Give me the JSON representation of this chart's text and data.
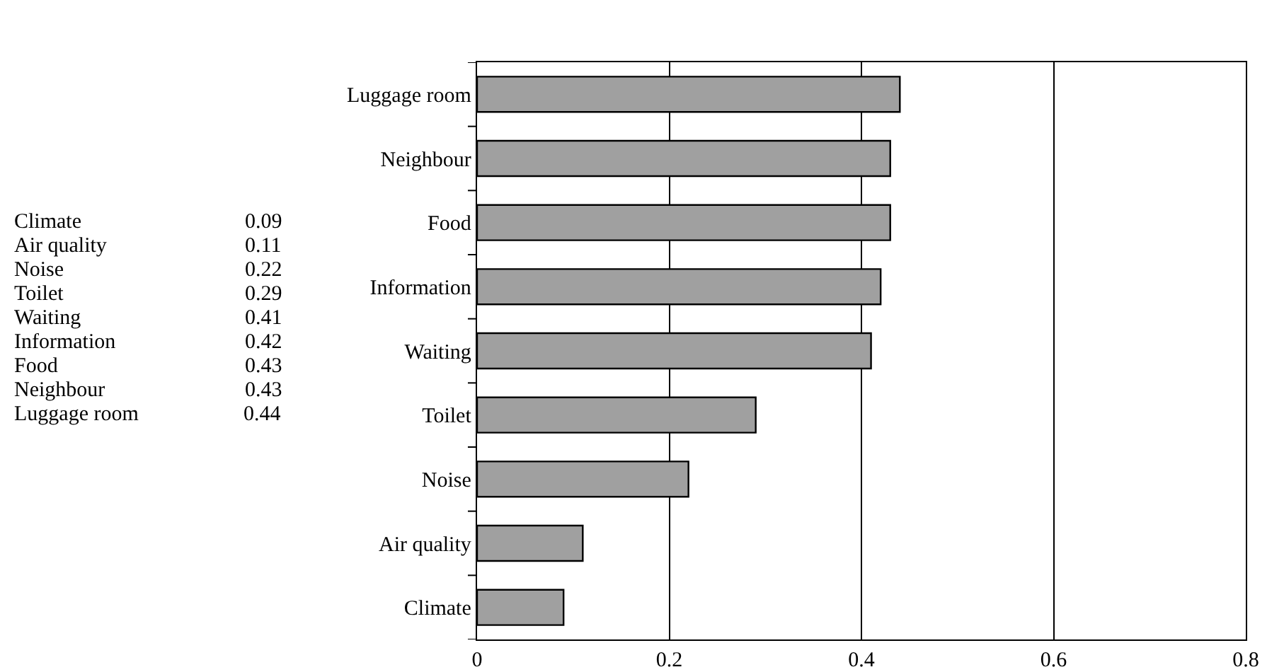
{
  "chart_data": {
    "type": "bar",
    "orientation": "horizontal",
    "categories": [
      "Luggage room",
      "Neighbour",
      "Food",
      "Information",
      "Waiting",
      "Toilet",
      "Noise",
      "Air quality",
      "Climate"
    ],
    "values": [
      0.44,
      0.43,
      0.43,
      0.42,
      0.41,
      0.29,
      0.22,
      0.11,
      0.09
    ],
    "color": "#a0a0a0",
    "xlim": [
      0,
      0.8
    ],
    "xticks": [
      0,
      0.2,
      0.4,
      0.6,
      0.8
    ],
    "grid": "x",
    "annotations": [
      "Climate",
      "0.09",
      "Air quality",
      "0.11",
      "Noise",
      "0.22",
      "Toilet",
      "0.29",
      "Waiting",
      "0.41",
      "Information",
      "0.42",
      "Food",
      "0.43",
      "Neighbour",
      "0.43",
      "Luggage room",
      "0.44"
    ]
  }
}
